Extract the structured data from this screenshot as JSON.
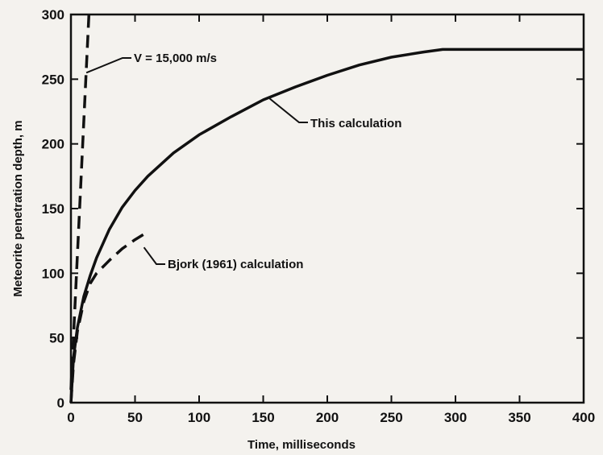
{
  "chart_data": {
    "type": "line",
    "title": "",
    "xlabel": "Time, milliseconds",
    "ylabel": "Meteorite penetration depth, m",
    "xlim": [
      0,
      400
    ],
    "ylim": [
      0,
      300
    ],
    "xticks": [
      0,
      50,
      100,
      150,
      200,
      250,
      300,
      350,
      400
    ],
    "yticks": [
      0,
      50,
      100,
      150,
      200,
      250,
      300
    ],
    "grid": false,
    "legend": "none",
    "series": [
      {
        "name": "This calculation",
        "style": "solid",
        "x": [
          0,
          2,
          5,
          10,
          15,
          20,
          30,
          40,
          50,
          60,
          80,
          100,
          125,
          150,
          175,
          200,
          225,
          250,
          275,
          290,
          300,
          350,
          400
        ],
        "y": [
          0,
          35,
          58,
          82,
          98,
          112,
          134,
          151,
          164,
          175,
          193,
          207,
          221,
          234,
          244,
          253,
          261,
          267,
          271,
          273,
          273,
          273,
          273
        ]
      },
      {
        "name": "Bjork (1961) calculation",
        "style": "dashed",
        "x": [
          0,
          2,
          5,
          10,
          15,
          20,
          30,
          40,
          50,
          60
        ],
        "y": [
          0,
          30,
          55,
          78,
          92,
          100,
          110,
          119,
          126,
          132
        ]
      },
      {
        "name": "V = 15,000 m/s",
        "style": "dashed",
        "x": [
          0,
          14
        ],
        "y": [
          10,
          300
        ]
      }
    ],
    "annotations": [
      {
        "text": "V = 15,000 m/s",
        "series": 2,
        "at_x": 12,
        "at_y": 255
      },
      {
        "text": "This calculation",
        "series": 0,
        "at_x": 155,
        "at_y": 235
      },
      {
        "text": "Bjork (1961) calculation",
        "series": 1,
        "at_x": 57,
        "at_y": 120
      }
    ]
  }
}
